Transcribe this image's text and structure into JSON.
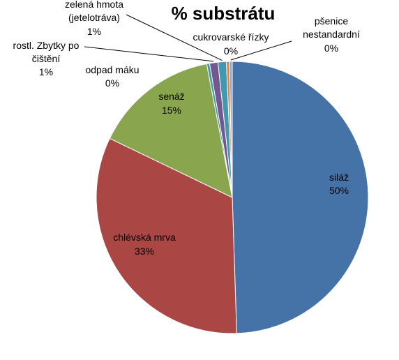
{
  "chart_data": {
    "type": "pie",
    "title": "% substrátu",
    "series": [
      {
        "name": "siláž",
        "value": 50,
        "value_label": "50%",
        "color": "#4572A7"
      },
      {
        "name": "chlévská mrva",
        "value": 33,
        "value_label": "33%",
        "color": "#AA4643"
      },
      {
        "name": "senáž",
        "value": 15,
        "value_label": "15%",
        "color": "#89A54E"
      },
      {
        "name": "odpad máku",
        "value": 0,
        "value_label": "0%",
        "color": "#4198AF"
      },
      {
        "name": "rostl. Zbytky po čištění",
        "value": 1,
        "value_label": "1%",
        "color": "#71588F"
      },
      {
        "name": "zelená hmota (jetelotráva)",
        "value": 1,
        "value_label": "1%",
        "color": "#4198AF"
      },
      {
        "name": "cukrovarské řízky",
        "value": 0,
        "value_label": "0%",
        "color": "#DB843D"
      },
      {
        "name": "pšenice nestandardní",
        "value": 0,
        "value_label": "0%",
        "color": "#93A9CF"
      }
    ],
    "start_angle": "12 o'clock",
    "direction": "clockwise",
    "legend": "none"
  }
}
